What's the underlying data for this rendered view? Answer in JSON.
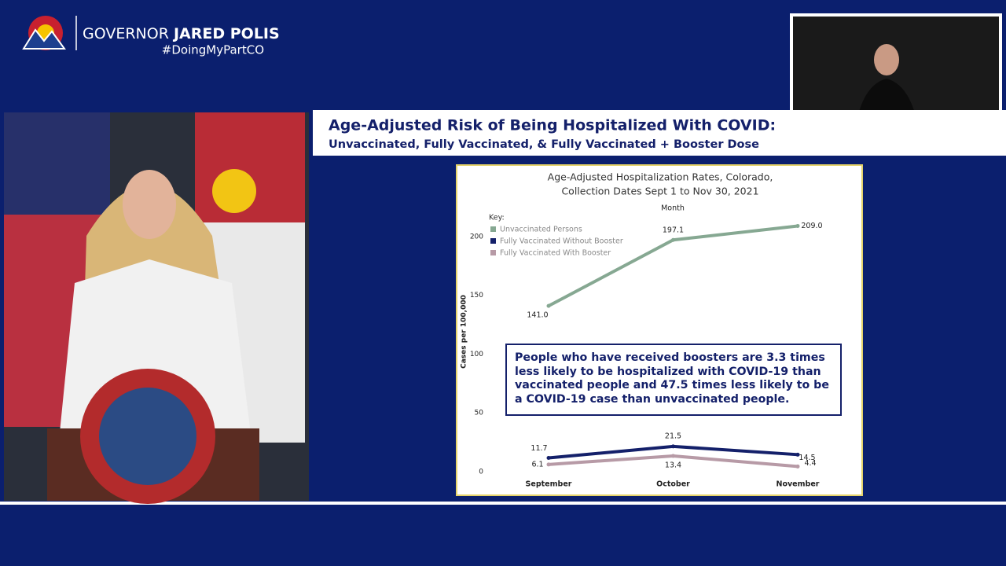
{
  "header": {
    "title_prefix": "GOVERNOR",
    "title_name": "JARED POLIS",
    "hashtag": "#DoingMyPartCO"
  },
  "slide": {
    "title": "Age-Adjusted Risk of Being Hospitalized With COVID:",
    "subtitle": "Unvaccinated, Fully Vaccinated, & Fully Vaccinated + Booster Dose"
  },
  "chart_data": {
    "type": "line",
    "title": "Age-Adjusted Hospitalization Rates, Colorado,",
    "subtitle": "Collection Dates Sept 1 to Nov 30, 2021",
    "x_label": "Month",
    "y_label": "Cases per 100,000",
    "legend_title": "Key:",
    "categories": [
      "September",
      "October",
      "November"
    ],
    "series": [
      {
        "name": "Unvaccinated Persons",
        "color": "#86a892",
        "values": [
          141.0,
          197.1,
          209.0
        ],
        "value_labels": [
          "141.0",
          "197.1",
          "209.0"
        ]
      },
      {
        "name": "Fully Vaccinated Without Booster",
        "color": "#14206a",
        "values": [
          11.7,
          21.5,
          14.5
        ]
      },
      {
        "name": "Fully Vaccinated With Booster",
        "color": "#b79aa6",
        "values": [
          6.1,
          13.4,
          4.4
        ]
      }
    ],
    "ylim": [
      0,
      220
    ],
    "yticks": [
      0,
      50,
      100,
      150,
      200
    ],
    "annotation": "People who have received boosters are 3.3 times less likely to be hospitalized with COVID-19 than vaccinated people and 47.5 times less likely to be a COVID-19 case than unvaccinated people."
  }
}
